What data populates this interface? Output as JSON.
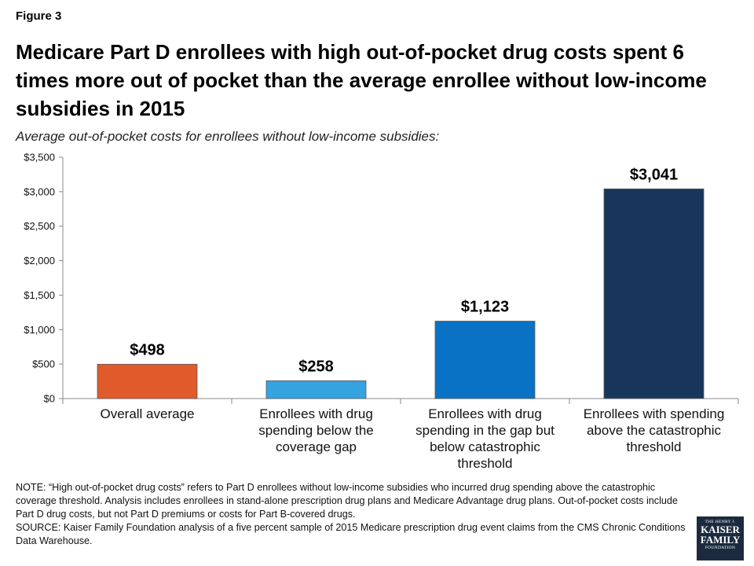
{
  "figure_label": "Figure 3",
  "title": "Medicare Part D enrollees with high out-of-pocket drug costs spent 6 times more out of pocket than the average enrollee without low-income subsidies in 2015",
  "subtitle": "Average out-of-pocket costs for enrollees without low-income subsidies:",
  "chart_data": {
    "type": "bar",
    "categories": [
      [
        "Overall average"
      ],
      [
        "Enrollees with drug",
        "spending below the",
        "coverage gap"
      ],
      [
        "Enrollees with drug",
        "spending in the gap but",
        "below catastrophic",
        "threshold"
      ],
      [
        "Enrollees with spending",
        "above the catastrophic",
        "threshold"
      ]
    ],
    "values": [
      498,
      258,
      1123,
      3041
    ],
    "data_labels": [
      "$498",
      "$258",
      "$1,123",
      "$3,041"
    ],
    "colors": [
      "#e05a2b",
      "#35a3e0",
      "#0a72c5",
      "#18365b"
    ],
    "ylim": [
      0,
      3500
    ],
    "yticks": [
      0,
      500,
      1000,
      1500,
      2000,
      2500,
      3000,
      3500
    ],
    "ytick_labels": [
      "$0",
      "$500",
      "$1,000",
      "$1,500",
      "$2,000",
      "$2,500",
      "$3,000",
      "$3,500"
    ],
    "grid": false
  },
  "note": "NOTE: “High out-of-pocket drug costs” refers to Part D enrollees without low-income subsidies who incurred drug spending above the catastrophic coverage threshold. Analysis includes enrollees in stand-alone prescription drug plans and Medicare Advantage drug plans. Out-of-pocket costs include Part D drug costs, but not Part D premiums or costs for Part B-covered drugs.",
  "source": "SOURCE: Kaiser Family Foundation analysis of a five percent sample of 2015 Medicare prescription drug event claims from the CMS Chronic Conditions Data Warehouse.",
  "logo": {
    "line1": "THE HENRY J.",
    "line2": "KAISER",
    "line3": "FAMILY",
    "line4": "FOUNDATION"
  }
}
